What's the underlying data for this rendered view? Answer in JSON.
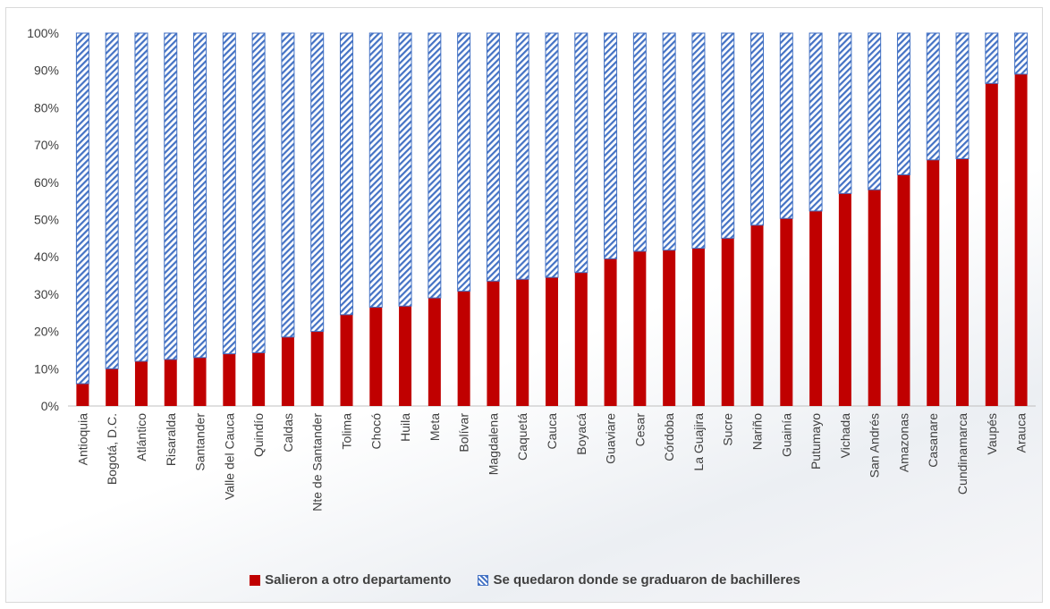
{
  "chart_data": {
    "type": "bar",
    "stacked": true,
    "categories": [
      "Antioquia",
      "Bogotá, D.C.",
      "Atlántico",
      "Risaralda",
      "Santander",
      "Valle del Cauca",
      "Quindío",
      "Caldas",
      "Nte de Santander",
      "Tolima",
      "Chocó",
      "Huila",
      "Meta",
      "Bolívar",
      "Magdalena",
      "Caquetá",
      "Cauca",
      "Boyacá",
      "Guaviare",
      "Cesar",
      "Córdoba",
      "La Guajira",
      "Sucre",
      "Nariño",
      "Guainía",
      "Putumayo",
      "Vichada",
      "San Andrés",
      "Amazonas",
      "Casanare",
      "Cundinamarca",
      "Vaupés",
      "Arauca"
    ],
    "series": [
      {
        "name": "Salieron a otro departamento",
        "color": "#c00000",
        "fill": "solid",
        "values": [
          6,
          10,
          12,
          12.5,
          13,
          14,
          14.3,
          18.5,
          20,
          24.5,
          26.5,
          26.8,
          29,
          30.8,
          33.5,
          34,
          34.5,
          35.8,
          39.5,
          41.5,
          41.8,
          42.3,
          45,
          48.5,
          50.3,
          52.3,
          57,
          58,
          62,
          66,
          66.3,
          86.5,
          89
        ]
      },
      {
        "name": "Se quedaron donde se graduaron de bachilleres",
        "color": "#4472c4",
        "fill": "hatch",
        "values": [
          94,
          90,
          88,
          87.5,
          87,
          86,
          85.7,
          81.5,
          80,
          75.5,
          73.5,
          73.2,
          71,
          69.2,
          66.5,
          66,
          65.5,
          64.2,
          60.5,
          58.5,
          58.2,
          57.7,
          55,
          51.5,
          49.7,
          47.7,
          43,
          42,
          38,
          34,
          33.7,
          13.5,
          11
        ]
      }
    ],
    "ylim": [
      0,
      100
    ],
    "yticks": [
      "0%",
      "10%",
      "20%",
      "30%",
      "40%",
      "50%",
      "60%",
      "70%",
      "80%",
      "90%",
      "100%"
    ],
    "grid": false,
    "legend_position": "bottom"
  }
}
